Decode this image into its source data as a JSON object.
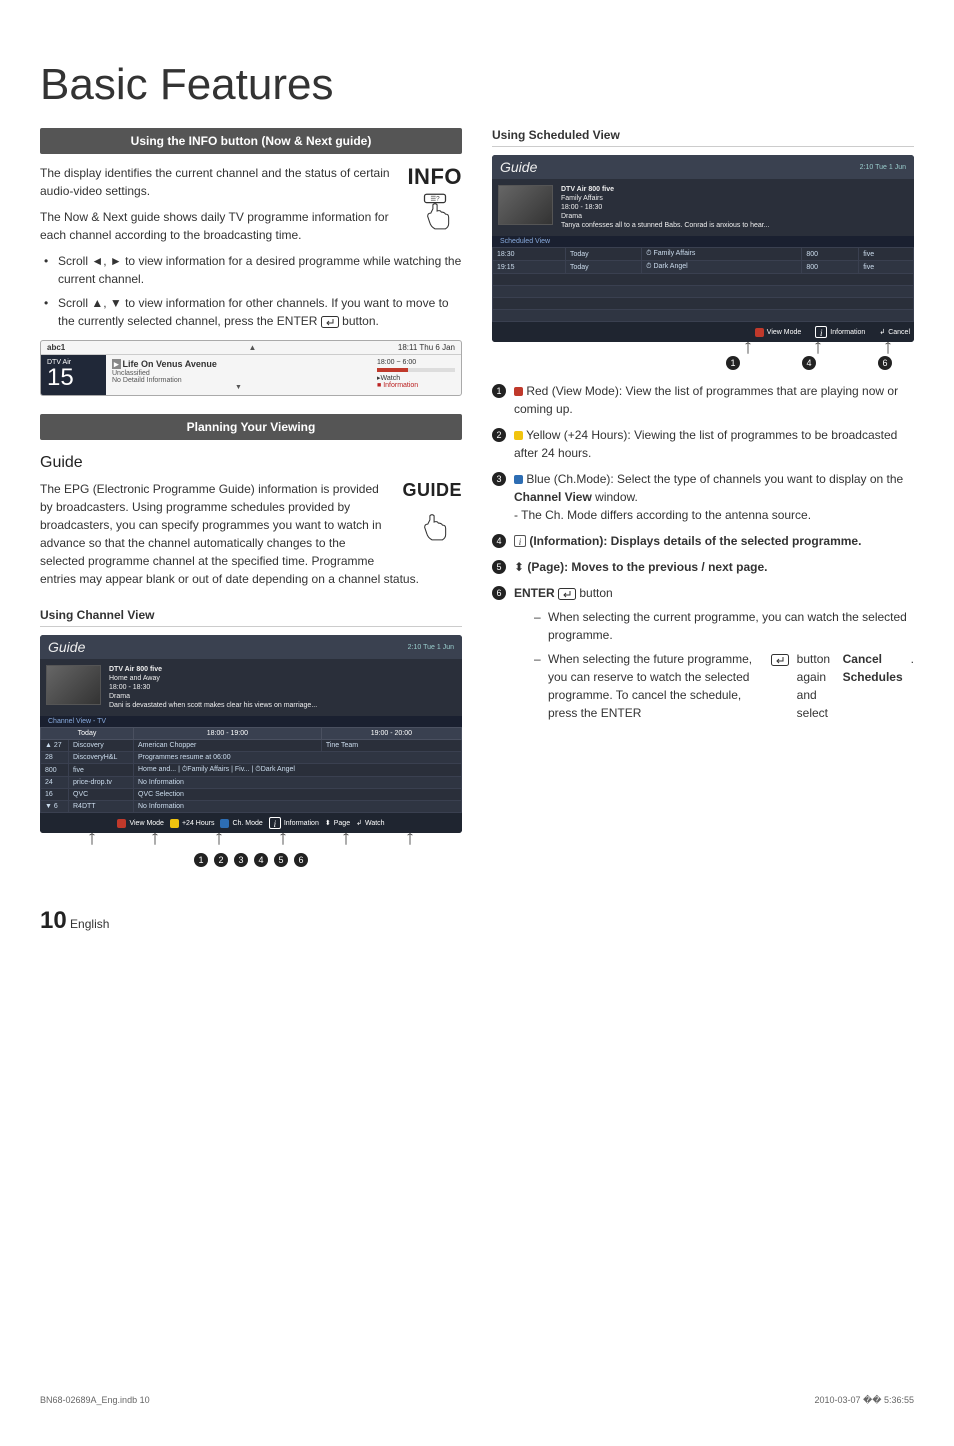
{
  "page_title": "Basic Features",
  "left": {
    "section1_title": "Using the INFO button (Now & Next guide)",
    "p1": "The display identifies the current channel and the status of certain audio-video settings.",
    "p2": "The Now & Next guide shows daily TV programme information for each channel according to the broadcasting time.",
    "bullet1a": "Scroll ◄, ► to view information for a desired programme while watching the current channel.",
    "bullet1b": "Scroll ▲, ▼ to view information for other channels. If you want to move to the currently selected channel, press the ENTER",
    "bullet1b_tail": " button.",
    "info_label": "INFO",
    "mini": {
      "ch_name": "abc1",
      "clock": "18:11 Thu 6 Jan",
      "dtv": "DTV Air",
      "num": "15",
      "prog_title": "Life On Venus Avenue",
      "unclassified": "Unclassified",
      "noinfo": "No Detaild Information",
      "timespan": "18:00 ~ 6:00",
      "watch": "Watch",
      "info": "Information"
    },
    "section2_title": "Planning Your Viewing",
    "guide_heading": "Guide",
    "guide_p": "The EPG (Electronic Programme Guide) information is provided by broadcasters. Using programme schedules provided by broadcasters, you can specify programmes you want to watch in advance so that the channel automatically changes to the selected programme channel at the specified time. Programme entries may appear blank or out of date depending on a channel status.",
    "guide_label": "GUIDE",
    "using_channel_view": "Using Channel View",
    "cv": {
      "title": "Guide",
      "time": "2:10 Tue 1 Jun",
      "meta_ch": "DTV Air 800 five",
      "meta_prog": "Home and Away",
      "meta_time": "18:00 - 18:30",
      "meta_genre": "Drama",
      "meta_desc": "Dani is devastated when scott makes clear his views on marriage...",
      "viewlabel": "Channel View - TV",
      "th_today": "Today",
      "th_slot1": "18:00 - 19:00",
      "th_slot2": "19:00 - 20:00",
      "rows": [
        {
          "n": "▲ 27",
          "ch": "Discovery",
          "a": "American Chopper",
          "b": "Tine Team"
        },
        {
          "n": "28",
          "ch": "DiscoveryH&L",
          "a": "Programmes resume at 06:00",
          "b": ""
        },
        {
          "n": "800",
          "ch": "five",
          "a": "Home and... | ⏱Family Affairs | Fiv... | ⏱Dark Angel",
          "b": ""
        },
        {
          "n": "24",
          "ch": "price-drop.tv",
          "a": "No Information",
          "b": ""
        },
        {
          "n": "16",
          "ch": "QVC",
          "a": "QVC Selection",
          "b": ""
        },
        {
          "n": "▼ 6",
          "ch": "R4DTT",
          "a": "No Information",
          "b": ""
        }
      ],
      "footer_view": "View Mode",
      "footer_24": "+24 Hours",
      "footer_chmode": "Ch. Mode",
      "footer_info": "Information",
      "footer_page": "Page",
      "footer_watch": "Watch"
    }
  },
  "right": {
    "using_scheduled": "Using Scheduled View",
    "sv": {
      "title": "Guide",
      "time": "2:10 Tue 1 Jun",
      "meta_ch": "DTV Air 800 five",
      "meta_prog": "Family Affairs",
      "meta_time": "18:00 - 18:30",
      "meta_genre": "Drama",
      "meta_desc": "Tanya confesses all to a stunned Babs. Conrad is anxious to hear...",
      "viewlabel": "Scheduled View",
      "row1_t": "18:30",
      "row1_d": "Today",
      "row1_p": "⏱ Family Affairs",
      "row1_c": "800",
      "row1_ch": "five",
      "row2_t": "19:15",
      "row2_d": "Today",
      "row2_p": "⏱ Dark Angel",
      "row2_c": "800",
      "row2_ch": "five",
      "footer_view": "View Mode",
      "footer_info": "Information",
      "footer_cancel": "Cancel"
    },
    "n1": "Red (View Mode): View the list of programmes that are playing now or coming up.",
    "n2": "Yellow (+24 Hours): Viewing the list of programmes to be broadcasted after 24 hours.",
    "n3_a": "Blue (Ch.Mode): Select the type of channels you want to display on the ",
    "n3_b": "Channel View",
    "n3_c": " window.",
    "n3_d": "- The Ch. Mode differs according to the antenna source.",
    "n4": "(Information): Displays details of the selected programme.",
    "n5": "(Page): Moves to the previous / next page.",
    "n6_a": "ENTER",
    "n6_b": " button",
    "n6_sub1": "When selecting the current programme, you can watch the selected programme.",
    "n6_sub2_a": "When selecting the future programme, you can reserve to watch the selected programme. To cancel the schedule, press the ENTER",
    "n6_sub2_b": " button again and select ",
    "n6_sub2_c": "Cancel Schedules"
  },
  "pagenum_big": "10",
  "pagenum_lang": "English",
  "footer_left": "BN68-02689A_Eng.indb   10",
  "footer_right": "2010-03-07   �� 5:36:55",
  "colors": {
    "bar": "#555555",
    "accent_red": "#c0392b",
    "accent_yellow": "#f1c40f",
    "accent_blue": "#2d6db3",
    "guide_bg": "#2a2f3a"
  }
}
